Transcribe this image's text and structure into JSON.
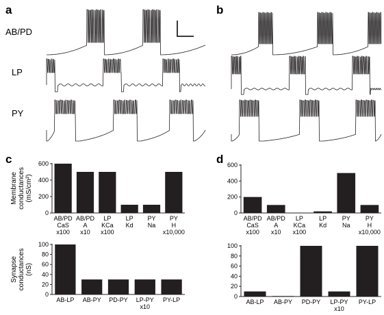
{
  "panel_letters": [
    "a",
    "b",
    "c",
    "d"
  ],
  "trace_labels": [
    "AB/PD",
    "LP",
    "PY"
  ],
  "chart_data": [
    {
      "id": "c-membrane",
      "type": "bar",
      "ylabel_lines": [
        "Membrane",
        "conductances",
        "(mS/cm²)"
      ],
      "ylim": [
        0,
        600
      ],
      "yticks": [
        "0",
        "200",
        "400",
        "600"
      ],
      "categories": [
        [
          "AB/PD",
          "CaS",
          "x100"
        ],
        [
          "AB/PD",
          "A",
          "x10"
        ],
        [
          "LP",
          "KCa",
          "x100"
        ],
        [
          "LP",
          "Kd"
        ],
        [
          "PY",
          "Na"
        ],
        [
          "PY",
          "H",
          "x10,000"
        ]
      ],
      "values": [
        600,
        500,
        500,
        100,
        100,
        500
      ]
    },
    {
      "id": "c-synapse",
      "type": "bar",
      "ylabel_lines": [
        "Synapse",
        "conductances",
        "(nS)"
      ],
      "ylim": [
        0,
        100
      ],
      "yticks": [
        "0",
        "20",
        "40",
        "60",
        "80",
        "100"
      ],
      "categories": [
        [
          "AB-LP"
        ],
        [
          "AB-PY"
        ],
        [
          "PD-PY"
        ],
        [
          "LP-PY",
          "x10"
        ],
        [
          "PY-LP"
        ]
      ],
      "values": [
        100,
        30,
        30,
        30,
        30
      ]
    },
    {
      "id": "d-membrane",
      "type": "bar",
      "ylabel_lines": [],
      "ylim": [
        0,
        600
      ],
      "yticks": [
        "0",
        "200",
        "400",
        "600"
      ],
      "categories": [
        [
          "AB/PD",
          "CaS",
          "x100"
        ],
        [
          "AB/PD",
          "A",
          "x10"
        ],
        [
          "LP",
          "KCa",
          "x100"
        ],
        [
          "LP",
          "Kd"
        ],
        [
          "PY",
          "Na"
        ],
        [
          "PY",
          "H",
          "x10,000"
        ]
      ],
      "values": [
        200,
        100,
        0,
        20,
        500,
        100
      ]
    },
    {
      "id": "d-synapse",
      "type": "bar",
      "ylabel_lines": [],
      "ylim": [
        0,
        100
      ],
      "yticks": [
        "0",
        "20",
        "40",
        "60",
        "80",
        "100"
      ],
      "categories": [
        [
          "AB-LP"
        ],
        [
          "AB-PY"
        ],
        [
          "PD-PY"
        ],
        [
          "LP-PY",
          "x10"
        ],
        [
          "PY-LP"
        ]
      ],
      "values": [
        10,
        1,
        100,
        10,
        100
      ]
    }
  ]
}
